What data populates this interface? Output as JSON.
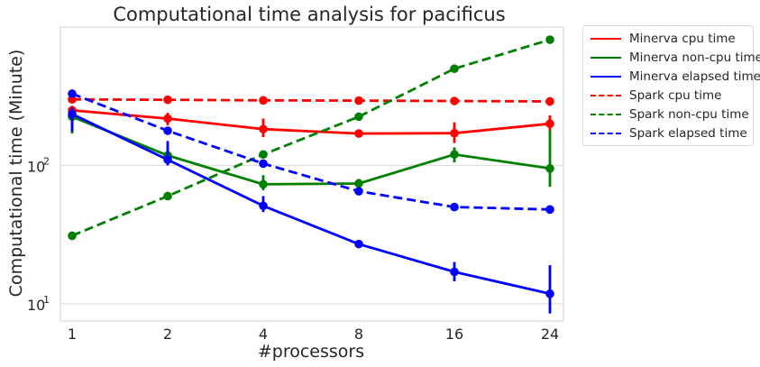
{
  "chart_data": {
    "type": "line",
    "title": "Computational time analysis for pacificus",
    "xlabel": "#processors",
    "ylabel": "Computational time (Minute)",
    "yscale": "log",
    "ylim": [
      7.5,
      1000
    ],
    "yticks": [
      {
        "value": 10,
        "label": "10",
        "exp": "1"
      },
      {
        "value": 100,
        "label": "10",
        "exp": "2"
      }
    ],
    "categories": [
      "1",
      "2",
      "4",
      "8",
      "16",
      "24"
    ],
    "grid": true,
    "legend_position": "outside-top-right",
    "series": [
      {
        "name": "Minerva cpu time",
        "color": "#ff0000",
        "dash": "solid",
        "values": [
          250,
          218,
          183,
          170,
          171,
          200
        ],
        "err_low": [
          225,
          195,
          160,
          165,
          145,
          175
        ],
        "err_high": [
          270,
          240,
          218,
          175,
          205,
          230
        ]
      },
      {
        "name": "Minerva non-cpu time",
        "color": "#008000",
        "dash": "solid",
        "values": [
          225,
          118,
          73,
          74,
          120,
          95
        ],
        "err_low": [
          170,
          105,
          66,
          70,
          105,
          70
        ],
        "err_high": [
          250,
          130,
          85,
          80,
          135,
          180
        ]
      },
      {
        "name": "Minerva elapsed time",
        "color": "#0000ff",
        "dash": "solid",
        "values": [
          235,
          110,
          51,
          27,
          17,
          11.8
        ],
        "err_low": [
          175,
          100,
          46,
          26,
          14.5,
          8.5
        ],
        "err_high": [
          262,
          150,
          60,
          28,
          20,
          19
        ]
      },
      {
        "name": "Spark cpu time",
        "color": "#ff0000",
        "dash": "dashed",
        "values": [
          300,
          298,
          295,
          294,
          292,
          290
        ],
        "err_low": [
          290,
          290,
          288,
          288,
          285,
          270
        ],
        "err_high": [
          310,
          306,
          302,
          300,
          298,
          310
        ]
      },
      {
        "name": "Spark non-cpu time",
        "color": "#008000",
        "dash": "dashed",
        "values": [
          31,
          60,
          120,
          225,
          500,
          810
        ],
        "err_low": [
          30,
          58,
          116,
          220,
          490,
          790
        ],
        "err_high": [
          32,
          62,
          124,
          230,
          510,
          830
        ]
      },
      {
        "name": "Spark elapsed time",
        "color": "#0000ff",
        "dash": "dashed",
        "values": [
          330,
          178,
          103,
          65,
          50,
          48
        ],
        "err_low": [
          320,
          170,
          100,
          63,
          49,
          47
        ],
        "err_high": [
          340,
          186,
          106,
          67,
          51,
          49
        ]
      }
    ]
  }
}
